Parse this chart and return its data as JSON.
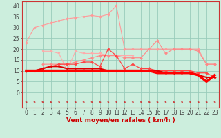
{
  "x": [
    0,
    1,
    2,
    3,
    4,
    5,
    6,
    7,
    8,
    9,
    10,
    11,
    12,
    13,
    14,
    15,
    16,
    17,
    18,
    19,
    20,
    21,
    22,
    23
  ],
  "series": [
    {
      "color": "#ff9999",
      "lw": 0.8,
      "marker": "D",
      "markersize": 2,
      "values": [
        23,
        30,
        31,
        32,
        33,
        34,
        34.5,
        35,
        35.5,
        35,
        36,
        40,
        20,
        20,
        20,
        20,
        20,
        20,
        20,
        20,
        20,
        20,
        13,
        13
      ]
    },
    {
      "color": "#ffaaaa",
      "lw": 0.8,
      "marker": "v",
      "markersize": 2.5,
      "values": [
        null,
        null,
        19,
        19,
        18,
        10,
        19,
        18,
        18,
        18,
        17,
        17,
        17,
        17,
        null,
        null,
        null,
        null,
        null,
        null,
        null,
        null,
        null,
        null
      ]
    },
    {
      "color": "#ff8888",
      "lw": 0.8,
      "marker": "D",
      "markersize": 2,
      "values": [
        null,
        null,
        13,
        13,
        13,
        13,
        14,
        15,
        16,
        17,
        17,
        17,
        16,
        16,
        16,
        null,
        24,
        18,
        20,
        20,
        20,
        19,
        13,
        13
      ]
    },
    {
      "color": "#ff4444",
      "lw": 0.9,
      "marker": "D",
      "markersize": 2,
      "values": [
        10,
        10,
        11,
        12,
        13,
        13,
        13,
        14,
        14,
        12,
        20,
        17,
        11,
        13,
        11,
        11,
        10,
        10,
        10,
        10,
        10,
        9,
        9,
        7
      ]
    },
    {
      "color": "#dd0000",
      "lw": 1.5,
      "marker": "D",
      "markersize": 1.5,
      "values": [
        10,
        10,
        11,
        12,
        12,
        11,
        11,
        11,
        11,
        11,
        10,
        10,
        10,
        10,
        10,
        10,
        10,
        9,
        9,
        9,
        9,
        8,
        7,
        7
      ]
    },
    {
      "color": "#ff0000",
      "lw": 2.5,
      "marker": null,
      "values": [
        10,
        10,
        10,
        10,
        10,
        10,
        10,
        10,
        10,
        10,
        10,
        10,
        10,
        10,
        10,
        10,
        9,
        9,
        9,
        9,
        9,
        8,
        5,
        8
      ]
    }
  ],
  "xlabel": "Vent moyen/en rafales ( km/h )",
  "ylim": [
    -7,
    42
  ],
  "yticks": [
    0,
    5,
    10,
    15,
    20,
    25,
    30,
    35,
    40
  ],
  "xticks": [
    0,
    1,
    2,
    3,
    4,
    5,
    6,
    7,
    8,
    9,
    10,
    11,
    12,
    13,
    14,
    15,
    16,
    17,
    18,
    19,
    20,
    21,
    22,
    23
  ],
  "bg_color": "#cceedd",
  "grid_color": "#99ccbb",
  "arrow_color": "#cc3333",
  "tick_fontsize": 5.5,
  "xlabel_fontsize": 6.5
}
